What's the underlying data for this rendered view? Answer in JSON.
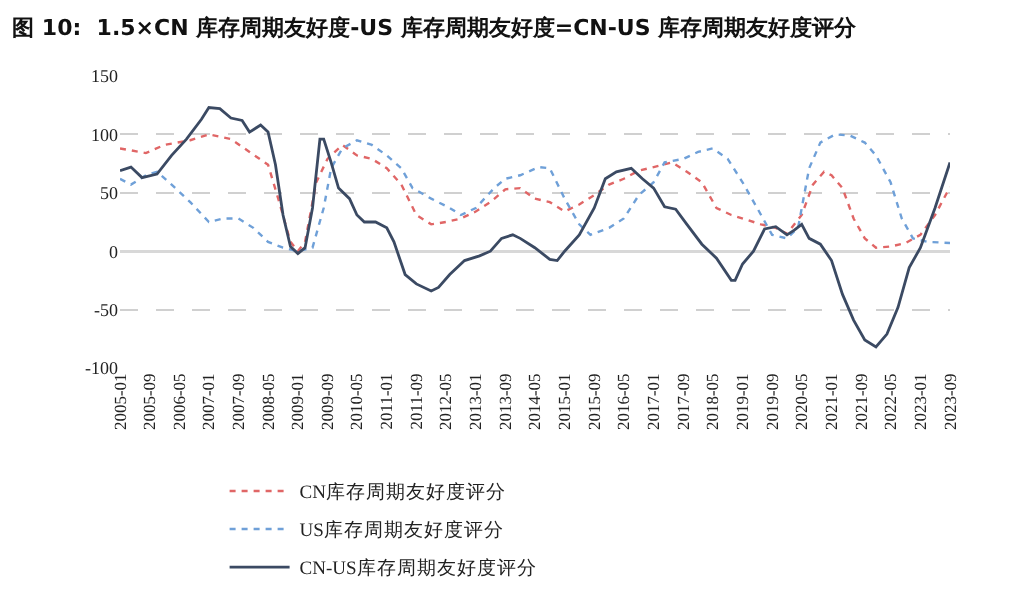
{
  "chart_data": {
    "type": "line",
    "title": "图 10:  1.5×CN 库存周期友好度-US 库存周期友好度=CN-US 库存周期友好度评分",
    "xlim": [
      "2005-01",
      "2023-09"
    ],
    "xticks": [
      "2005-01",
      "2005-09",
      "2006-05",
      "2007-01",
      "2007-09",
      "2008-05",
      "2009-01",
      "2009-09",
      "2010-05",
      "2011-01",
      "2011-09",
      "2012-05",
      "2013-01",
      "2013-09",
      "2014-05",
      "2015-01",
      "2015-09",
      "2016-05",
      "2017-01",
      "2017-09",
      "2018-05",
      "2019-01",
      "2019-09",
      "2020-05",
      "2021-01",
      "2021-09",
      "2022-05",
      "2023-01",
      "2023-09"
    ],
    "ylim": [
      -100,
      150
    ],
    "yticks": [
      -100,
      -50,
      0,
      50,
      100,
      150
    ],
    "grid": "y",
    "legend": "bottom",
    "series": [
      {
        "name": "CN库存周期友好度评分",
        "color": "#e06666",
        "line_style": "dotted",
        "x": [
          "2005-01",
          "2005-08",
          "2006-01",
          "2006-08",
          "2007-01",
          "2007-07",
          "2007-12",
          "2008-05",
          "2008-08",
          "2008-11",
          "2009-01",
          "2009-03",
          "2009-06",
          "2009-09",
          "2010-01",
          "2010-05",
          "2010-09",
          "2011-01",
          "2011-05",
          "2011-09",
          "2012-01",
          "2012-05",
          "2012-09",
          "2013-01",
          "2013-05",
          "2013-09",
          "2014-01",
          "2014-05",
          "2014-09",
          "2015-01",
          "2015-05",
          "2015-09",
          "2016-01",
          "2016-05",
          "2016-09",
          "2017-01",
          "2017-06",
          "2017-10",
          "2018-02",
          "2018-06",
          "2018-10",
          "2019-02",
          "2019-06",
          "2019-10",
          "2020-01",
          "2020-05",
          "2020-08",
          "2020-11",
          "2021-01",
          "2021-04",
          "2021-07",
          "2021-10",
          "2022-01",
          "2022-05",
          "2022-09",
          "2023-01",
          "2023-05",
          "2023-09"
        ],
        "values": [
          88,
          84,
          91,
          95,
          100,
          96,
          85,
          74,
          42,
          8,
          0,
          8,
          59,
          79,
          91,
          82,
          79,
          71,
          57,
          31,
          23,
          25,
          28,
          34,
          42,
          53,
          54,
          45,
          42,
          34,
          40,
          48,
          57,
          62,
          69,
          72,
          76,
          68,
          59,
          37,
          31,
          27,
          23,
          20,
          15,
          31,
          57,
          68,
          65,
          54,
          28,
          11,
          3,
          4,
          7,
          14,
          31,
          55
        ]
      },
      {
        "name": "US库存周期友好度评分",
        "color": "#6fa0d8",
        "line_style": "dotted",
        "x": [
          "2005-01",
          "2005-04",
          "2005-08",
          "2005-11",
          "2006-03",
          "2006-08",
          "2007-01",
          "2007-05",
          "2007-09",
          "2008-01",
          "2008-05",
          "2008-09",
          "2009-01",
          "2009-05",
          "2009-08",
          "2009-10",
          "2010-01",
          "2010-05",
          "2010-09",
          "2011-01",
          "2011-05",
          "2011-08",
          "2012-01",
          "2012-06",
          "2012-09",
          "2013-01",
          "2013-06",
          "2013-09",
          "2014-01",
          "2014-06",
          "2014-09",
          "2015-01",
          "2015-05",
          "2015-08",
          "2016-01",
          "2016-05",
          "2016-09",
          "2017-01",
          "2017-04",
          "2017-09",
          "2018-01",
          "2018-05",
          "2018-09",
          "2019-01",
          "2019-05",
          "2019-09",
          "2020-01",
          "2020-04",
          "2020-07",
          "2020-10",
          "2021-02",
          "2021-06",
          "2021-10",
          "2022-01",
          "2022-05",
          "2022-08",
          "2022-11",
          "2023-03",
          "2023-09"
        ],
        "values": [
          62,
          57,
          65,
          68,
          57,
          42,
          25,
          28,
          28,
          20,
          8,
          3,
          0,
          3,
          37,
          71,
          88,
          95,
          91,
          82,
          71,
          54,
          45,
          37,
          31,
          37,
          54,
          62,
          65,
          72,
          71,
          45,
          23,
          14,
          20,
          28,
          48,
          59,
          76,
          79,
          85,
          88,
          79,
          59,
          37,
          14,
          11,
          20,
          71,
          93,
          100,
          99,
          93,
          82,
          59,
          28,
          11,
          8,
          7
        ]
      },
      {
        "name": "CN-US库存周期友好度评分",
        "color": "#3b4a63",
        "line_style": "solid",
        "x": [
          "2005-01",
          "2005-04",
          "2005-07",
          "2005-11",
          "2006-03",
          "2006-07",
          "2006-11",
          "2007-01",
          "2007-04",
          "2007-07",
          "2007-10",
          "2007-12",
          "2008-03",
          "2008-05",
          "2008-07",
          "2008-09",
          "2008-11",
          "2009-01",
          "2009-03",
          "2009-05",
          "2009-07",
          "2009-08",
          "2009-10",
          "2009-12",
          "2010-03",
          "2010-05",
          "2010-07",
          "2010-10",
          "2011-01",
          "2011-03",
          "2011-06",
          "2011-09",
          "2012-01",
          "2012-03",
          "2012-06",
          "2012-10",
          "2013-02",
          "2013-05",
          "2013-08",
          "2013-11",
          "2014-01",
          "2014-05",
          "2014-09",
          "2014-11",
          "2015-01",
          "2015-05",
          "2015-09",
          "2015-12",
          "2016-03",
          "2016-07",
          "2016-10",
          "2017-01",
          "2017-04",
          "2017-07",
          "2017-10",
          "2018-02",
          "2018-06",
          "2018-10",
          "2018-11",
          "2019-01",
          "2019-04",
          "2019-07",
          "2019-10",
          "2020-01",
          "2020-03",
          "2020-05",
          "2020-07",
          "2020-10",
          "2021-01",
          "2021-04",
          "2021-07",
          "2021-10",
          "2022-01",
          "2022-04",
          "2022-07",
          "2022-10",
          "2023-01",
          "2023-05",
          "2023-09"
        ],
        "values": [
          69,
          72,
          63,
          66,
          82,
          96,
          113,
          123,
          122,
          114,
          112,
          102,
          108,
          102,
          74,
          31,
          4,
          -2,
          3,
          37,
          96,
          96,
          76,
          54,
          45,
          31,
          25,
          25,
          20,
          8,
          -20,
          -28,
          -34,
          -31,
          -20,
          -8,
          -4,
          0,
          11,
          14,
          11,
          3,
          -7,
          -8,
          0,
          14,
          37,
          62,
          68,
          71,
          62,
          54,
          38,
          36,
          23,
          6,
          -6,
          -25,
          -25,
          -11,
          0,
          19,
          21,
          14,
          18,
          23,
          11,
          6,
          -8,
          -37,
          -59,
          -76,
          -82,
          -71,
          -48,
          -14,
          3,
          37,
          76
        ]
      }
    ]
  }
}
